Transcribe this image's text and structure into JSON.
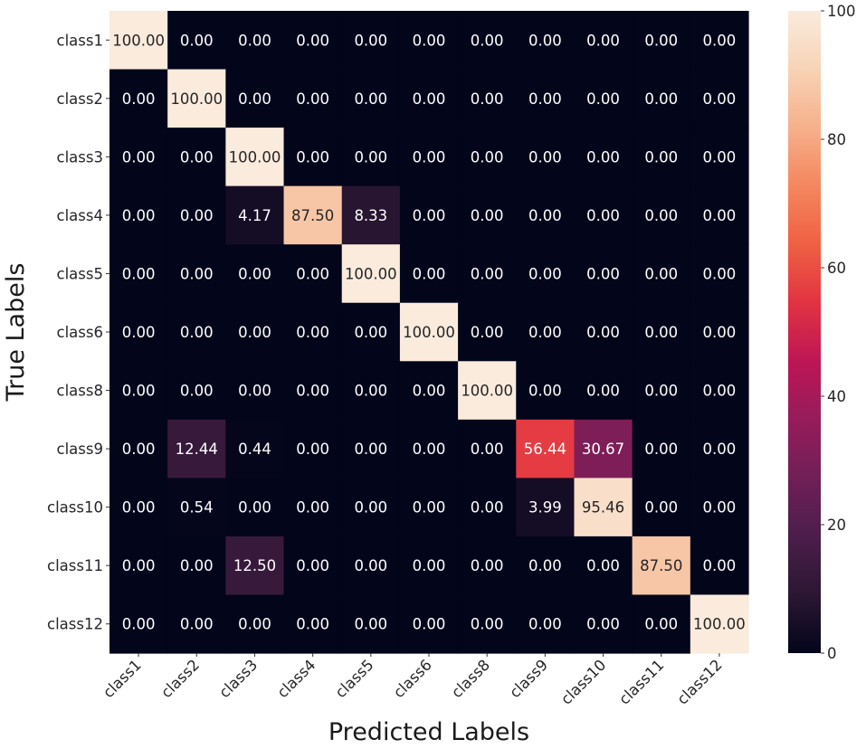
{
  "chart_data": {
    "type": "heatmap",
    "title": "",
    "xlabel": "Predicted Labels",
    "ylabel": "True Labels",
    "x_categories": [
      "class1",
      "class2",
      "class3",
      "class4",
      "class5",
      "class6",
      "class8",
      "class9",
      "class10",
      "class11",
      "class12"
    ],
    "y_categories": [
      "class1",
      "class2",
      "class3",
      "class4",
      "class5",
      "class6",
      "class8",
      "class9",
      "class10",
      "class11",
      "class12"
    ],
    "values": [
      [
        100.0,
        0.0,
        0.0,
        0.0,
        0.0,
        0.0,
        0.0,
        0.0,
        0.0,
        0.0,
        0.0
      ],
      [
        0.0,
        100.0,
        0.0,
        0.0,
        0.0,
        0.0,
        0.0,
        0.0,
        0.0,
        0.0,
        0.0
      ],
      [
        0.0,
        0.0,
        100.0,
        0.0,
        0.0,
        0.0,
        0.0,
        0.0,
        0.0,
        0.0,
        0.0
      ],
      [
        0.0,
        0.0,
        4.17,
        87.5,
        8.33,
        0.0,
        0.0,
        0.0,
        0.0,
        0.0,
        0.0
      ],
      [
        0.0,
        0.0,
        0.0,
        0.0,
        100.0,
        0.0,
        0.0,
        0.0,
        0.0,
        0.0,
        0.0
      ],
      [
        0.0,
        0.0,
        0.0,
        0.0,
        0.0,
        100.0,
        0.0,
        0.0,
        0.0,
        0.0,
        0.0
      ],
      [
        0.0,
        0.0,
        0.0,
        0.0,
        0.0,
        0.0,
        100.0,
        0.0,
        0.0,
        0.0,
        0.0
      ],
      [
        0.0,
        12.44,
        0.44,
        0.0,
        0.0,
        0.0,
        0.0,
        56.44,
        30.67,
        0.0,
        0.0
      ],
      [
        0.0,
        0.54,
        0.0,
        0.0,
        0.0,
        0.0,
        0.0,
        3.99,
        95.46,
        0.0,
        0.0
      ],
      [
        0.0,
        0.0,
        12.5,
        0.0,
        0.0,
        0.0,
        0.0,
        0.0,
        0.0,
        87.5,
        0.0
      ],
      [
        0.0,
        0.0,
        0.0,
        0.0,
        0.0,
        0.0,
        0.0,
        0.0,
        0.0,
        0.0,
        100.0
      ]
    ],
    "value_format": "2 decimals",
    "colormap": "rocket",
    "colormap_stops": [
      "#03051a",
      "#2b1733",
      "#4c1d4b",
      "#701f57",
      "#961c5b",
      "#bd1655",
      "#e13342",
      "#f06043",
      "#f4875e",
      "#f6b08b",
      "#f8d3b6",
      "#faebdd"
    ],
    "vmin": 0,
    "vmax": 100,
    "colorbar": {
      "ticks": [
        0,
        20,
        40,
        60,
        80,
        100
      ],
      "tick_labels": [
        "0",
        "20",
        "40",
        "60",
        "80",
        "100"
      ],
      "placement": "right"
    },
    "text_color_dark": "#262626",
    "text_color_light": "#ffffff",
    "grid": false
  }
}
